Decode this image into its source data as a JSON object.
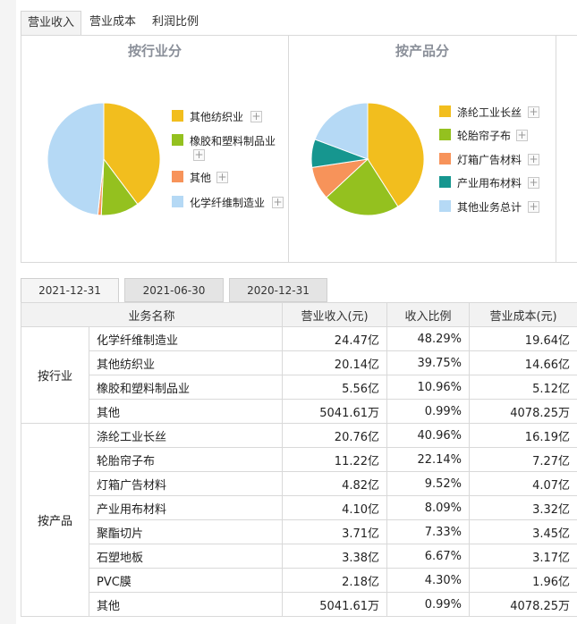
{
  "tabs": [
    "营业收入",
    "营业成本",
    "利润比例"
  ],
  "active_tab": 0,
  "panels": [
    {
      "title": "按行业分",
      "legend": [
        {
          "label": "其他纺织业",
          "color": "#f2be1e"
        },
        {
          "label": "橡胶和塑料制品业",
          "color": "#94c11f"
        },
        {
          "label": "其他",
          "color": "#f7935a"
        },
        {
          "label": "化学纤维制造业",
          "color": "#b5d9f5"
        }
      ],
      "chart_data": {
        "type": "pie",
        "slices": [
          {
            "label": "其他纺织业",
            "value": 39.75,
            "color": "#f2be1e"
          },
          {
            "label": "橡胶和塑料制品业",
            "value": 10.96,
            "color": "#94c11f"
          },
          {
            "label": "其他",
            "value": 0.99,
            "color": "#f7935a"
          },
          {
            "label": "化学纤维制造业",
            "value": 48.29,
            "color": "#b5d9f5"
          }
        ]
      }
    },
    {
      "title": "按产品分",
      "legend": [
        {
          "label": "涤纶工业长丝",
          "color": "#f2be1e"
        },
        {
          "label": "轮胎帘子布",
          "color": "#94c11f"
        },
        {
          "label": "灯箱广告材料",
          "color": "#f7935a"
        },
        {
          "label": "产业用布材料",
          "color": "#16968f"
        },
        {
          "label": "其他业务总计",
          "color": "#b5d9f5"
        }
      ],
      "chart_data": {
        "type": "pie",
        "slices": [
          {
            "label": "涤纶工业长丝",
            "value": 40.96,
            "color": "#f2be1e"
          },
          {
            "label": "轮胎帘子布",
            "value": 22.14,
            "color": "#94c11f"
          },
          {
            "label": "灯箱广告材料",
            "value": 9.52,
            "color": "#f7935a"
          },
          {
            "label": "产业用布材料",
            "value": 8.09,
            "color": "#16968f"
          },
          {
            "label": "其他业务总计",
            "value": 19.29,
            "color": "#b5d9f5"
          }
        ]
      }
    }
  ],
  "date_tabs": [
    "2021-12-31",
    "2021-06-30",
    "2020-12-31"
  ],
  "active_date": 0,
  "table": {
    "headers": [
      "业务名称",
      "营业收入(元)",
      "收入比例",
      "营业成本(元)"
    ],
    "groups": [
      {
        "name": "按行业",
        "rows": [
          [
            "化学纤维制造业",
            "24.47亿",
            "48.29%",
            "19.64亿"
          ],
          [
            "其他纺织业",
            "20.14亿",
            "39.75%",
            "14.66亿"
          ],
          [
            "橡胶和塑料制品业",
            "5.56亿",
            "10.96%",
            "5.12亿"
          ],
          [
            "其他",
            "5041.61万",
            "0.99%",
            "4078.25万"
          ]
        ]
      },
      {
        "name": "按产品",
        "rows": [
          [
            "涤纶工业长丝",
            "20.76亿",
            "40.96%",
            "16.19亿"
          ],
          [
            "轮胎帘子布",
            "11.22亿",
            "22.14%",
            "7.27亿"
          ],
          [
            "灯箱广告材料",
            "4.82亿",
            "9.52%",
            "4.07亿"
          ],
          [
            "产业用布材料",
            "4.10亿",
            "8.09%",
            "3.32亿"
          ],
          [
            "聚酯切片",
            "3.71亿",
            "7.33%",
            "3.45亿"
          ],
          [
            "石塑地板",
            "3.38亿",
            "6.67%",
            "3.17亿"
          ],
          [
            "PVC膜",
            "2.18亿",
            "4.30%",
            "1.96亿"
          ],
          [
            "其他",
            "5041.61万",
            "0.99%",
            "4078.25万"
          ]
        ]
      }
    ]
  }
}
